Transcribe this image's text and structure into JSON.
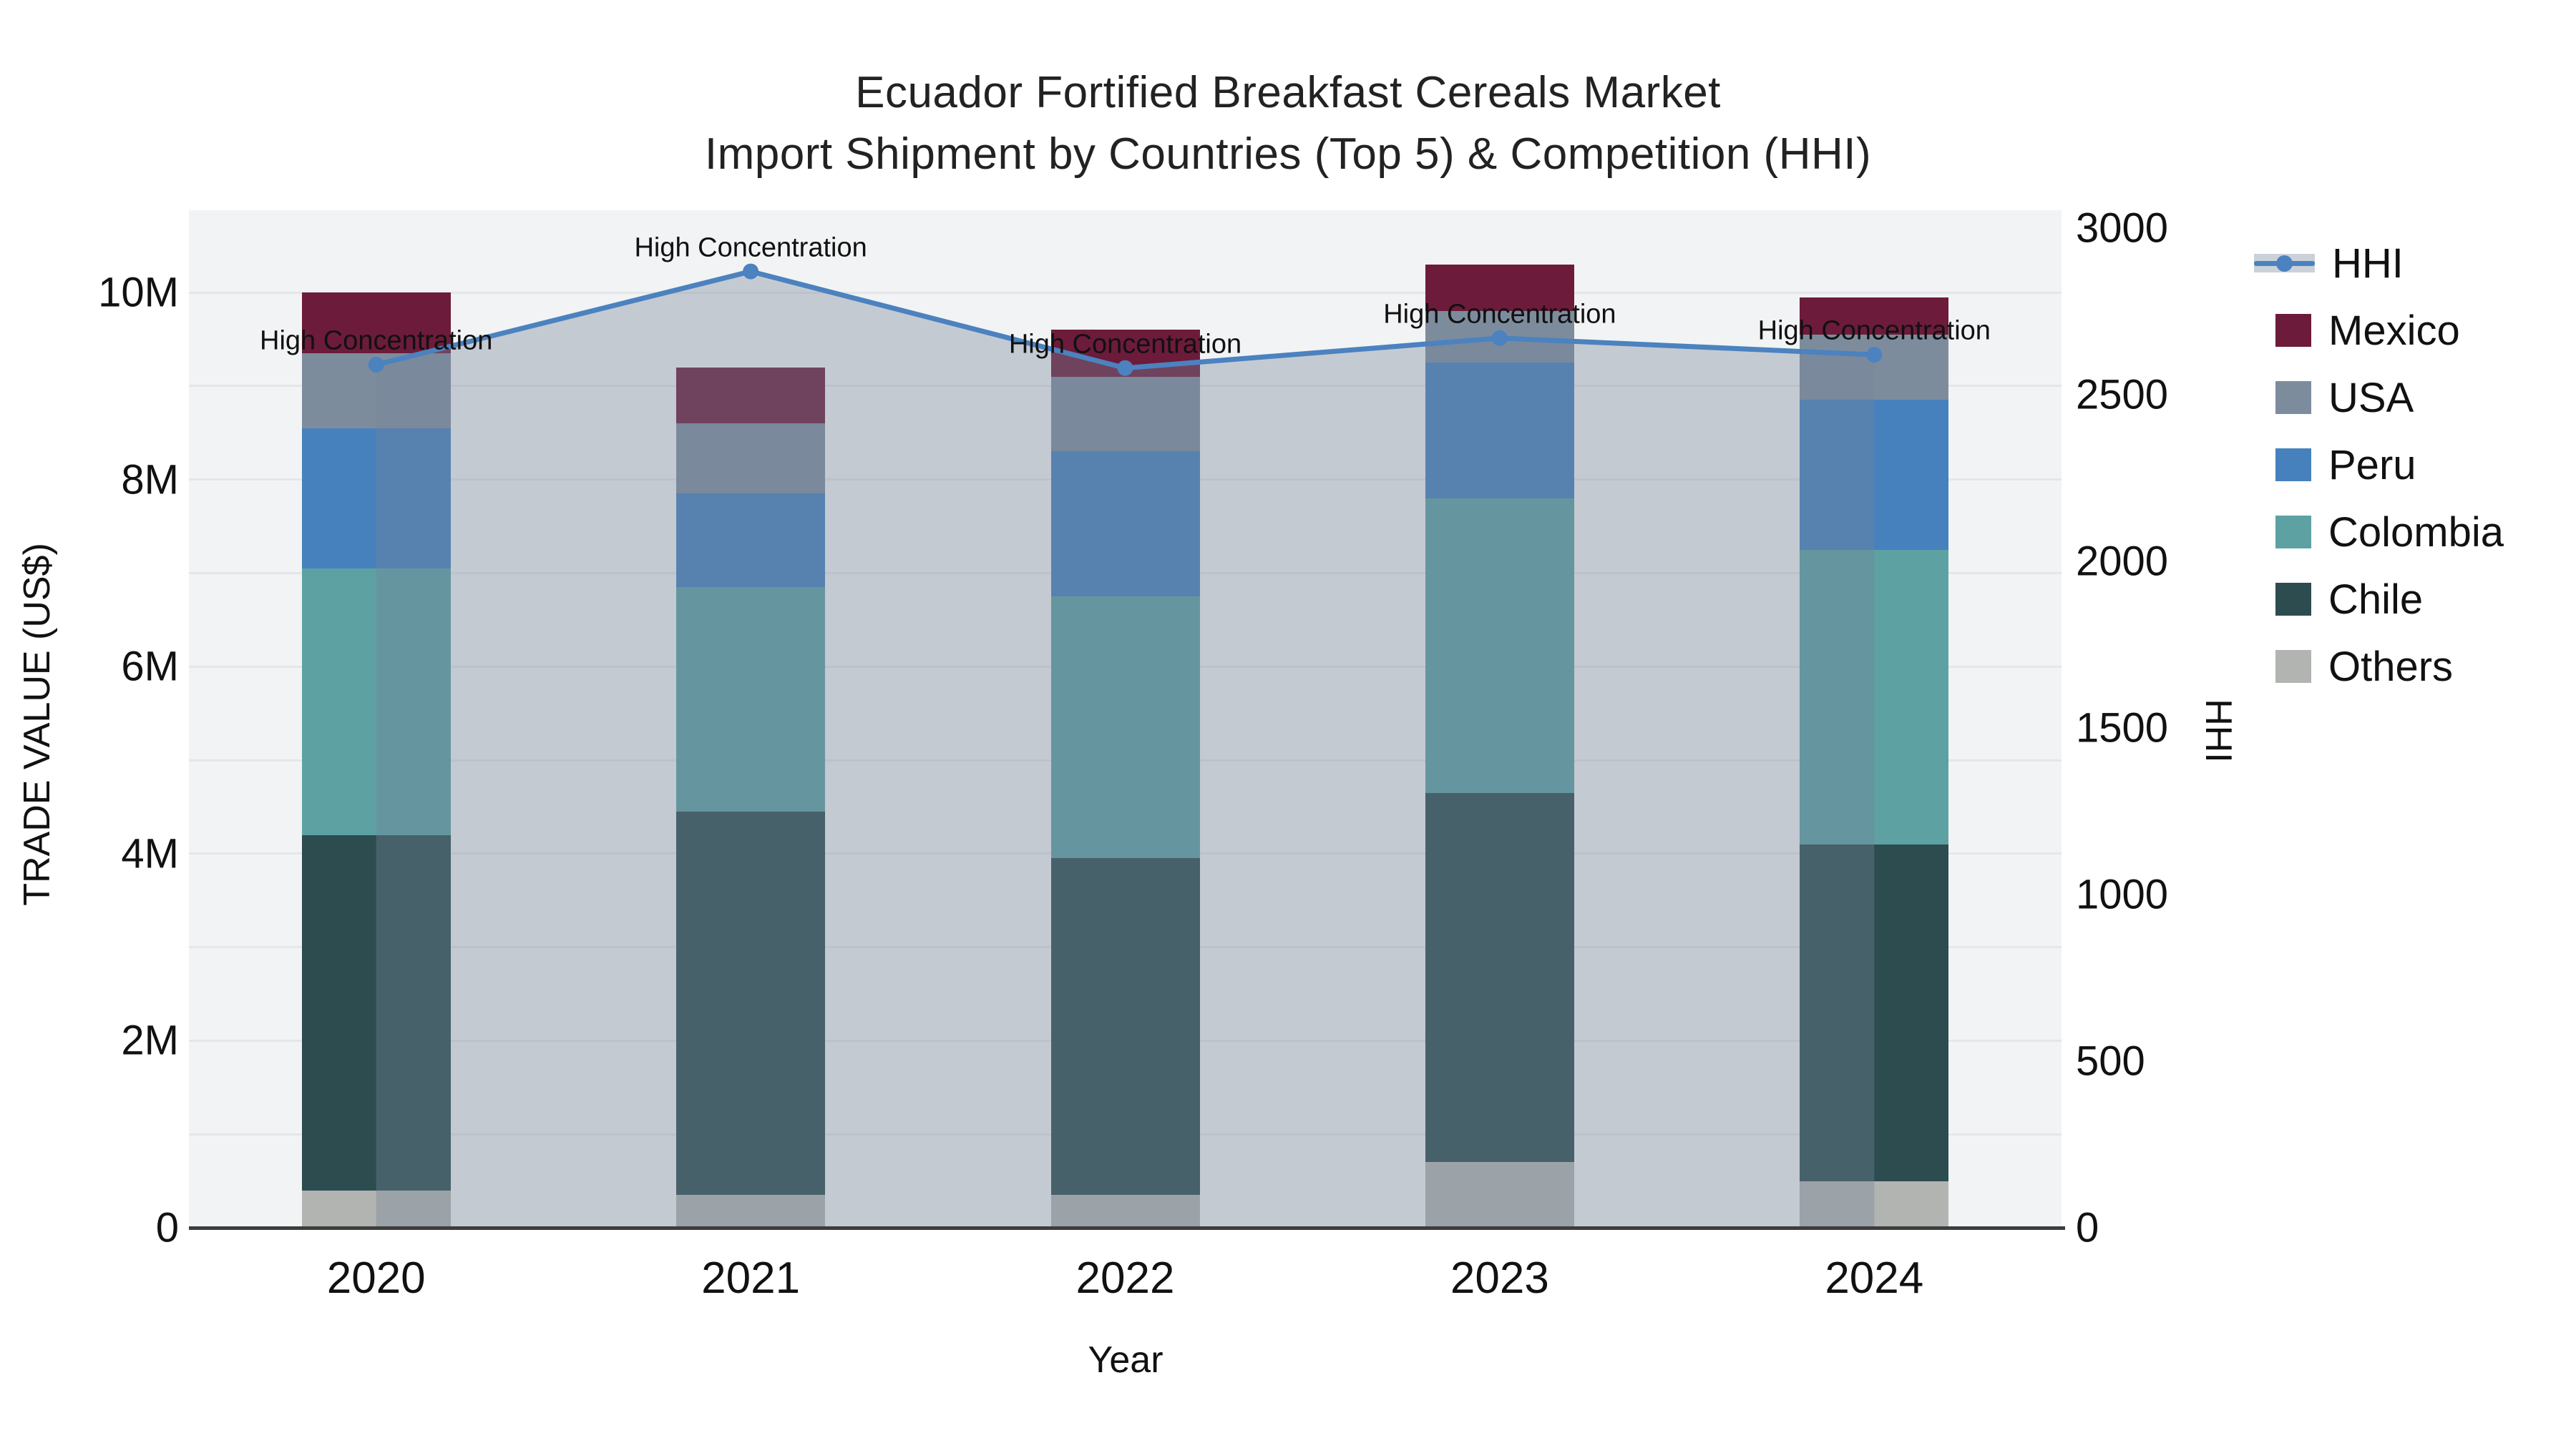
{
  "title": {
    "line1": "Ecuador Fortified Breakfast Cereals Market",
    "line2": "Import Shipment by Countries (Top 5) & Competition (HHI)"
  },
  "axes": {
    "x": {
      "title": "Year",
      "tick_labels": [
        "2020",
        "2021",
        "2022",
        "2023",
        "2024"
      ]
    },
    "left": {
      "title": "TRADE VALUE (US$)",
      "tick_values_musd": [
        0,
        2,
        4,
        6,
        8,
        10
      ],
      "tick_labels": [
        "0",
        "2M",
        "4M",
        "6M",
        "8M",
        "10M"
      ]
    },
    "right": {
      "title": "HHI",
      "tick_values": [
        0,
        500,
        1000,
        1500,
        2000,
        2500,
        3000
      ],
      "tick_labels": [
        "0",
        "500",
        "1000",
        "1500",
        "2000",
        "2500",
        "3000"
      ]
    }
  },
  "legend": {
    "items": [
      {
        "label": "HHI",
        "type": "line",
        "color": "#4b82bf"
      },
      {
        "label": "Mexico",
        "type": "swatch",
        "color": "#6d1b3b"
      },
      {
        "label": "USA",
        "type": "swatch",
        "color": "#7d8c9d"
      },
      {
        "label": "Peru",
        "type": "swatch",
        "color": "#4681bd"
      },
      {
        "label": "Colombia",
        "type": "swatch",
        "color": "#5da1a3"
      },
      {
        "label": "Chile",
        "type": "swatch",
        "color": "#2d4c50"
      },
      {
        "label": "Others",
        "type": "swatch",
        "color": "#b2b4b2"
      }
    ]
  },
  "chart_data": {
    "type": "bar",
    "subtype": "stacked bars (left axis, trade value US$) + HHI line with shaded area fill (right axis)",
    "categories": [
      "2020",
      "2021",
      "2022",
      "2023",
      "2024"
    ],
    "xlabel": "Year",
    "ylabel_left": "TRADE VALUE (US$)",
    "ylabel_right": "HHI",
    "left_ylim_usd": [
      0,
      10880000
    ],
    "right_ylim": [
      0,
      3050
    ],
    "grid": "horizontal gridlines every 1M on left axis",
    "legend_position": "right",
    "stack_order_bottom_to_top": [
      "Others",
      "Chile",
      "Colombia",
      "Peru",
      "USA",
      "Mexico"
    ],
    "series": [
      {
        "name": "Others",
        "color": "#b2b4b2",
        "values_usd": [
          400000,
          350000,
          350000,
          700000,
          500000
        ]
      },
      {
        "name": "Chile",
        "color": "#2d4c50",
        "values_usd": [
          3800000,
          4100000,
          3600000,
          3950000,
          3600000
        ]
      },
      {
        "name": "Colombia",
        "color": "#5da1a3",
        "values_usd": [
          2850000,
          2400000,
          2800000,
          3150000,
          3150000
        ]
      },
      {
        "name": "Peru",
        "color": "#4681bd",
        "values_usd": [
          1500000,
          1000000,
          1550000,
          1450000,
          1600000
        ]
      },
      {
        "name": "USA",
        "color": "#7d8c9d",
        "values_usd": [
          800000,
          750000,
          800000,
          550000,
          700000
        ]
      },
      {
        "name": "Mexico",
        "color": "#6d1b3b",
        "values_usd": [
          650000,
          600000,
          500000,
          500000,
          400000
        ]
      }
    ],
    "bar_totals_usd": [
      10000000,
      9200000,
      9600000,
      10300000,
      9950000
    ],
    "line_series": {
      "name": "HHI",
      "axis": "right",
      "color": "#4b82bf",
      "marker": "circle",
      "fill": "area to zero, translucent gray-blue",
      "fill_color": "rgba(116,133,152,0.37)",
      "values": [
        2590,
        2870,
        2580,
        2670,
        2620
      ]
    },
    "annotations": [
      {
        "text": "High Concentration",
        "category": "2020",
        "hhi": 2590
      },
      {
        "text": "High Concentration",
        "category": "2021",
        "hhi": 2870
      },
      {
        "text": "High Concentration",
        "category": "2022",
        "hhi": 2580
      },
      {
        "text": "High Concentration",
        "category": "2023",
        "hhi": 2670
      },
      {
        "text": "High Concentration",
        "category": "2024",
        "hhi": 2620
      }
    ]
  }
}
